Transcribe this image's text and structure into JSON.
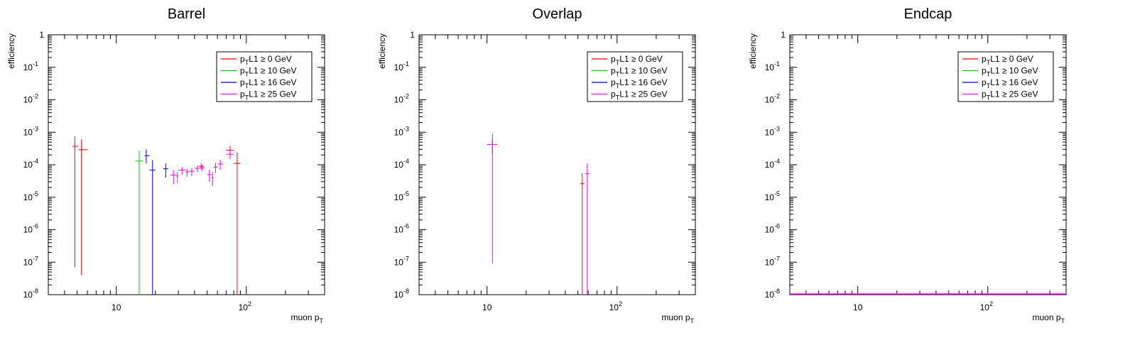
{
  "figure": {
    "ylabel": "efficiency",
    "xlabel_main": "muon p",
    "xlabel_sub": "T"
  },
  "legend": [
    {
      "pre": "p",
      "sub": "T",
      "post": "L1 ≥ 0 GeV",
      "color": "#ff0000"
    },
    {
      "pre": "p",
      "sub": "T",
      "post": "L1 ≥ 10 GeV",
      "color": "#00cc00"
    },
    {
      "pre": "p",
      "sub": "T",
      "post": "L1 ≥ 16 GeV",
      "color": "#0000ff"
    },
    {
      "pre": "p",
      "sub": "T",
      "post": "L1 ≥ 25 GeV",
      "color": "#ff00ff"
    }
  ],
  "chart_data": [
    {
      "type": "scatter",
      "title": "Barrel",
      "xlabel": "muon pT",
      "ylabel": "efficiency",
      "xscale": "log",
      "yscale": "log",
      "xlim": [
        3,
        400
      ],
      "ylim": [
        1e-08,
        1
      ],
      "x_ticks": [
        "10",
        "10^2"
      ],
      "y_ticks": [
        "10^-8",
        "10^-7",
        "10^-6",
        "10^-5",
        "10^-4",
        "10^-3",
        "10^-2",
        "10^-1",
        "1"
      ],
      "legend_position": "top-right",
      "series": [
        {
          "name": "pT L1 ≥ 0 GeV",
          "color": "#ff0000",
          "points": [
            {
              "x": 4.8,
              "y": 0.00037,
              "ylow": 7e-08,
              "yhigh": 0.00075,
              "xlow": 4.6,
              "xhigh": 5.1
            },
            {
              "x": 5.4,
              "y": 0.00029,
              "ylow": 4e-08,
              "yhigh": 0.0006,
              "xlow": 5.1,
              "xhigh": 6.0
            },
            {
              "x": 45,
              "y": 9e-05,
              "ylow": 7e-05,
              "yhigh": 0.00011,
              "xlow": 43,
              "xhigh": 47
            },
            {
              "x": 75,
              "y": 0.00028,
              "ylow": 0.0002,
              "yhigh": 0.00038,
              "xlow": 70,
              "xhigh": 80
            },
            {
              "x": 85,
              "y": 0.00011,
              "ylow": 1e-08,
              "yhigh": 0.00024,
              "xlow": 80,
              "xhigh": 90
            }
          ]
        },
        {
          "name": "pT L1 ≥ 10 GeV",
          "color": "#00cc00",
          "points": [
            {
              "x": 15,
              "y": 0.00013,
              "ylow": 1e-08,
              "yhigh": 0.00027,
              "xlow": 14,
              "xhigh": 16
            }
          ]
        },
        {
          "name": "pT L1 ≥ 16 GeV",
          "color": "#0000ff",
          "points": [
            {
              "x": 17,
              "y": 0.00019,
              "ylow": 0.00011,
              "yhigh": 0.0003,
              "xlow": 16.5,
              "xhigh": 18
            },
            {
              "x": 19,
              "y": 6.8e-05,
              "ylow": 1e-08,
              "yhigh": 0.00014,
              "xlow": 18,
              "xhigh": 20
            },
            {
              "x": 24,
              "y": 7.5e-05,
              "ylow": 4e-05,
              "yhigh": 0.00011,
              "xlow": 23,
              "xhigh": 25
            }
          ]
        },
        {
          "name": "pT L1 ≥ 25 GeV",
          "color": "#ff00ff",
          "points": [
            {
              "x": 27.5,
              "y": 4.8e-05,
              "ylow": 2.5e-05,
              "yhigh": 6.8e-05,
              "xlow": 26,
              "xhigh": 29
            },
            {
              "x": 29.5,
              "y": 4.5e-05,
              "ylow": 2.8e-05,
              "yhigh": 6.2e-05,
              "xlow": 29,
              "xhigh": 30
            },
            {
              "x": 32,
              "y": 6.8e-05,
              "ylow": 5e-05,
              "yhigh": 8.5e-05,
              "xlow": 30,
              "xhigh": 34
            },
            {
              "x": 35,
              "y": 6e-05,
              "ylow": 4.2e-05,
              "yhigh": 7.5e-05,
              "xlow": 34,
              "xhigh": 36
            },
            {
              "x": 38,
              "y": 6.3e-05,
              "ylow": 4.5e-05,
              "yhigh": 8e-05,
              "xlow": 36,
              "xhigh": 40
            },
            {
              "x": 42,
              "y": 7.8e-05,
              "ylow": 6e-05,
              "yhigh": 9.5e-05,
              "xlow": 40,
              "xhigh": 44
            },
            {
              "x": 46,
              "y": 8e-05,
              "ylow": 6.2e-05,
              "yhigh": 0.0001,
              "xlow": 44,
              "xhigh": 48
            },
            {
              "x": 52,
              "y": 5e-05,
              "ylow": 3e-05,
              "yhigh": 7e-05,
              "xlow": 50,
              "xhigh": 54
            },
            {
              "x": 55,
              "y": 4e-05,
              "ylow": 2.2e-05,
              "yhigh": 6e-05,
              "xlow": 54,
              "xhigh": 56
            },
            {
              "x": 58,
              "y": 8.5e-05,
              "ylow": 5.5e-05,
              "yhigh": 0.000115,
              "xlow": 56,
              "xhigh": 60
            },
            {
              "x": 63,
              "y": 0.000105,
              "ylow": 7e-05,
              "yhigh": 0.00014,
              "xlow": 60,
              "xhigh": 66
            },
            {
              "x": 75,
              "y": 0.00021,
              "ylow": 0.00015,
              "yhigh": 0.00029,
              "xlow": 70,
              "xhigh": 80
            }
          ]
        }
      ]
    },
    {
      "type": "scatter",
      "title": "Overlap",
      "xlabel": "muon pT",
      "ylabel": "efficiency",
      "xscale": "log",
      "yscale": "log",
      "xlim": [
        3,
        400
      ],
      "ylim": [
        1e-08,
        1
      ],
      "x_ticks": [
        "10",
        "10^2"
      ],
      "y_ticks": [
        "10^-8",
        "10^-7",
        "10^-6",
        "10^-5",
        "10^-4",
        "10^-3",
        "10^-2",
        "10^-1",
        "1"
      ],
      "legend_position": "top-right",
      "series": [
        {
          "name": "pT L1 ≥ 0 GeV",
          "color": "#ff0000",
          "points": [
            {
              "x": 11,
              "y": 0.00042,
              "ylow": 0.0002,
              "yhigh": 0.0006,
              "xlow": 10.5,
              "xhigh": 11.5
            },
            {
              "x": 54,
              "y": 2.6e-05,
              "ylow": 1e-08,
              "yhigh": 5.5e-05,
              "xlow": 52,
              "xhigh": 56
            }
          ]
        },
        {
          "name": "pT L1 ≥ 10 GeV",
          "color": "#00cc00",
          "points": []
        },
        {
          "name": "pT L1 ≥ 16 GeV",
          "color": "#0000ff",
          "points": []
        },
        {
          "name": "pT L1 ≥ 25 GeV",
          "color": "#ff00ff",
          "points": [
            {
              "x": 11,
              "y": 0.00042,
              "ylow": 9e-08,
              "yhigh": 0.0009,
              "xlow": 10,
              "xhigh": 12
            },
            {
              "x": 59,
              "y": 5.3e-05,
              "ylow": 1e-08,
              "yhigh": 0.00011,
              "xlow": 57,
              "xhigh": 61
            }
          ]
        }
      ]
    },
    {
      "type": "scatter",
      "title": "Endcap",
      "xlabel": "muon pT",
      "ylabel": "efficiency",
      "xscale": "log",
      "yscale": "log",
      "xlim": [
        3,
        400
      ],
      "ylim": [
        1e-08,
        1
      ],
      "x_ticks": [
        "10",
        "10^2"
      ],
      "y_ticks": [
        "10^-8",
        "10^-7",
        "10^-6",
        "10^-5",
        "10^-4",
        "10^-3",
        "10^-2",
        "10^-1",
        "1"
      ],
      "legend_position": "top-right",
      "baseline_at_ymin": true,
      "series": [
        {
          "name": "pT L1 ≥ 0 GeV",
          "color": "#ff0000",
          "points": []
        },
        {
          "name": "pT L1 ≥ 10 GeV",
          "color": "#00cc00",
          "points": []
        },
        {
          "name": "pT L1 ≥ 16 GeV",
          "color": "#0000ff",
          "points": []
        },
        {
          "name": "pT L1 ≥ 25 GeV",
          "color": "#ff00ff",
          "points": []
        }
      ]
    }
  ]
}
